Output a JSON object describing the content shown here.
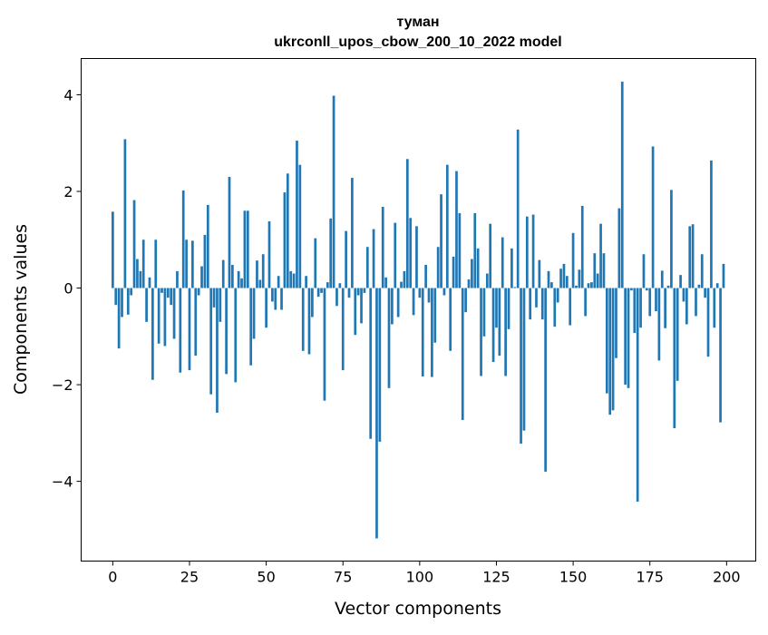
{
  "chart_data": {
    "type": "bar",
    "title": "туман",
    "subtitle": "ukrconll_upos_cbow_200_10_2022 model",
    "xlabel": "Vector components",
    "ylabel": "Components values",
    "xlim": [
      -10.3,
      209.5
    ],
    "ylim": [
      -5.65,
      4.75
    ],
    "xticks": [
      0,
      25,
      50,
      75,
      100,
      125,
      150,
      175,
      200
    ],
    "xtick_labels": [
      "0",
      "25",
      "50",
      "75",
      "100",
      "125",
      "150",
      "175",
      "200"
    ],
    "yticks": [
      -4,
      -2,
      0,
      2,
      4
    ],
    "ytick_labels": [
      "−4",
      "−2",
      "0",
      "2",
      "4"
    ],
    "grid": false,
    "color": "#1f77b4",
    "values": [
      1.58,
      -0.35,
      -1.25,
      -0.6,
      3.08,
      -0.55,
      -0.15,
      1.82,
      0.6,
      0.35,
      1.0,
      -0.7,
      0.22,
      -1.9,
      1.0,
      -1.15,
      -0.1,
      -1.2,
      -0.2,
      -0.35,
      -1.05,
      0.35,
      -1.75,
      2.02,
      1.0,
      -1.7,
      0.98,
      -1.4,
      -0.15,
      0.45,
      1.1,
      1.72,
      -2.2,
      -0.4,
      -2.58,
      -0.7,
      0.58,
      -1.78,
      2.3,
      0.48,
      -1.95,
      0.35,
      0.2,
      1.6,
      1.6,
      -1.6,
      -1.05,
      0.57,
      0.17,
      0.7,
      -0.82,
      1.38,
      -0.28,
      -0.45,
      0.25,
      -0.45,
      1.98,
      2.37,
      0.35,
      0.3,
      3.05,
      2.55,
      -1.3,
      0.25,
      -1.37,
      -0.6,
      1.03,
      -0.18,
      -0.1,
      -2.33,
      0.12,
      1.44,
      3.98,
      -0.37,
      0.1,
      -1.7,
      1.18,
      -0.2,
      2.28,
      -0.97,
      -0.15,
      -0.73,
      -0.1,
      0.85,
      -3.12,
      1.22,
      -5.18,
      -3.18,
      1.68,
      0.22,
      -2.07,
      -0.75,
      1.35,
      -0.6,
      0.13,
      0.35,
      2.67,
      1.45,
      -0.56,
      1.28,
      -0.2,
      -1.83,
      0.48,
      -0.3,
      -1.84,
      -1.13,
      0.85,
      1.94,
      -0.15,
      2.55,
      -1.3,
      0.65,
      2.42,
      1.55,
      -2.73,
      -0.5,
      0.18,
      0.6,
      1.55,
      0.82,
      -1.82,
      -1.0,
      0.3,
      1.33,
      -1.53,
      -0.82,
      -1.4,
      1.05,
      -1.82,
      -0.85,
      0.82,
      0.02,
      3.28,
      -3.22,
      -2.95,
      1.48,
      -0.65,
      1.52,
      -0.4,
      0.58,
      -0.65,
      -3.8,
      0.35,
      0.12,
      -0.8,
      -0.3,
      0.4,
      0.5,
      0.25,
      -0.77,
      1.14,
      0.05,
      0.38,
      1.7,
      -0.58,
      0.1,
      0.12,
      0.72,
      0.3,
      1.33,
      0.72,
      -2.18,
      -2.62,
      -2.53,
      -1.45,
      1.65,
      4.27,
      -2.0,
      -2.07,
      -0.05,
      -0.93,
      -4.42,
      -0.82,
      0.7,
      -0.05,
      -0.58,
      2.93,
      -0.48,
      -1.5,
      0.36,
      -0.83,
      0.05,
      2.03,
      -2.9,
      -1.92,
      0.27,
      -0.28,
      -0.75,
      1.28,
      1.32,
      -0.58,
      0.07,
      0.7,
      -0.2,
      -1.42,
      2.64,
      -0.82,
      0.1,
      -2.78,
      0.5
    ]
  }
}
